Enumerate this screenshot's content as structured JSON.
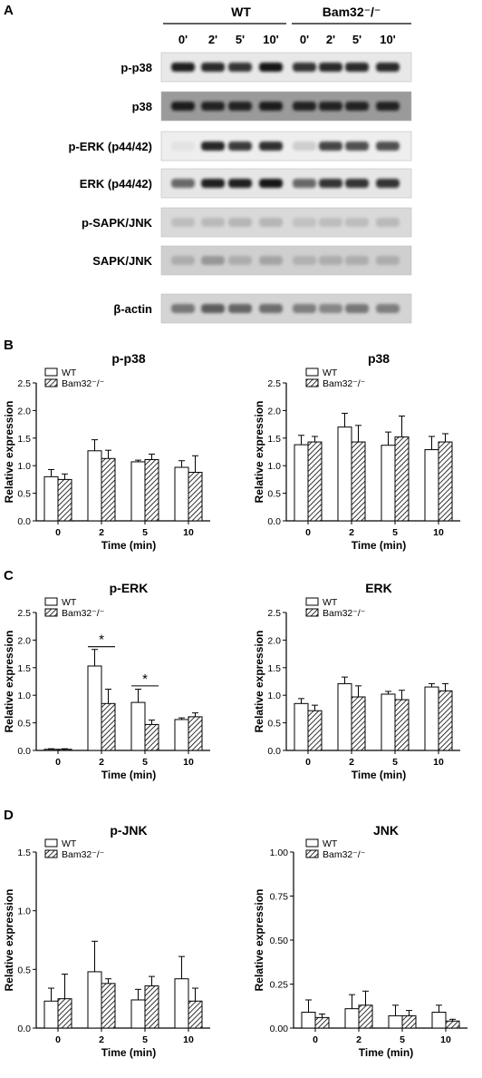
{
  "panel_letters": [
    "A",
    "B",
    "C",
    "D"
  ],
  "blot": {
    "groups": [
      "WT",
      "Bam32⁻/⁻"
    ],
    "lanes": [
      "0'",
      "2'",
      "5'",
      "10'",
      "0'",
      "2'",
      "5'",
      "10'"
    ],
    "rows": [
      {
        "label": "p-p38",
        "bg": "#e8e8e8",
        "band": "#141414"
      },
      {
        "label": "p38",
        "bg": "#9a9a9a",
        "band": "#141414"
      },
      {
        "label": "p-ERK (p44/42)",
        "bg": "#eeeeee",
        "band": "#1c1c1c"
      },
      {
        "label": "ERK (p44/42)",
        "bg": "#e6e6e6",
        "band": "#141414"
      },
      {
        "label": "p-SAPK/JNK",
        "bg": "#d9d9d9",
        "band": "#8a8a8a"
      },
      {
        "label": "SAPK/JNK",
        "bg": "#cfcfcf",
        "band": "#7a7a7a"
      },
      {
        "label": "β-actin",
        "bg": "#d4d4d4",
        "band": "#2a2a2a"
      }
    ]
  },
  "legend": {
    "wt": "WT",
    "ko": "Bam32⁻/⁻"
  },
  "chart_data": [
    {
      "type": "bar",
      "title": "p-p38",
      "xlabel": "Time (min)",
      "ylabel": "Relative expression",
      "categories": [
        "0",
        "2",
        "5",
        "10"
      ],
      "ylim": [
        0,
        2.5
      ],
      "yticks": [
        "0.0",
        "0.5",
        "1.0",
        "1.5",
        "2.0",
        "2.5"
      ],
      "series": [
        {
          "name": "WT",
          "values": [
            0.8,
            1.27,
            1.07,
            0.97
          ],
          "errors": [
            0.13,
            0.2,
            0.03,
            0.12
          ]
        },
        {
          "name": "Bam32⁻/⁻",
          "values": [
            0.75,
            1.13,
            1.11,
            0.88
          ],
          "errors": [
            0.1,
            0.15,
            0.1,
            0.3
          ]
        }
      ],
      "annotations": []
    },
    {
      "type": "bar",
      "title": "p38",
      "xlabel": "Time (min)",
      "ylabel": "Relative expression",
      "categories": [
        "0",
        "2",
        "5",
        "10"
      ],
      "ylim": [
        0,
        2.5
      ],
      "yticks": [
        "0.0",
        "0.5",
        "1.0",
        "1.5",
        "2.0",
        "2.5"
      ],
      "series": [
        {
          "name": "WT",
          "values": [
            1.38,
            1.7,
            1.37,
            1.29
          ],
          "errors": [
            0.17,
            0.25,
            0.24,
            0.24
          ]
        },
        {
          "name": "Bam32⁻/⁻",
          "values": [
            1.43,
            1.43,
            1.52,
            1.43
          ],
          "errors": [
            0.1,
            0.3,
            0.38,
            0.15
          ]
        }
      ],
      "annotations": []
    },
    {
      "type": "bar",
      "title": "p-ERK",
      "xlabel": "Time (min)",
      "ylabel": "Relative expression",
      "categories": [
        "0",
        "2",
        "5",
        "10"
      ],
      "ylim": [
        0,
        2.5
      ],
      "yticks": [
        "0.0",
        "0.5",
        "1.0",
        "1.5",
        "2.0",
        "2.5"
      ],
      "series": [
        {
          "name": "WT",
          "values": [
            0.02,
            1.53,
            0.87,
            0.56
          ],
          "errors": [
            0.01,
            0.3,
            0.24,
            0.03
          ]
        },
        {
          "name": "Bam32⁻/⁻",
          "values": [
            0.02,
            0.85,
            0.47,
            0.61
          ],
          "errors": [
            0.01,
            0.26,
            0.08,
            0.07
          ]
        }
      ],
      "annotations": [
        {
          "text": "*",
          "category": "2",
          "y": 1.88
        },
        {
          "text": "*",
          "category": "5",
          "y": 1.17
        }
      ]
    },
    {
      "type": "bar",
      "title": "ERK",
      "xlabel": "Time (min)",
      "ylabel": "Relative expression",
      "categories": [
        "0",
        "2",
        "5",
        "10"
      ],
      "ylim": [
        0,
        2.5
      ],
      "yticks": [
        "0.0",
        "0.5",
        "1.0",
        "1.5",
        "2.0",
        "2.5"
      ],
      "series": [
        {
          "name": "WT",
          "values": [
            0.85,
            1.21,
            1.02,
            1.15
          ],
          "errors": [
            0.09,
            0.12,
            0.05,
            0.06
          ]
        },
        {
          "name": "Bam32⁻/⁻",
          "values": [
            0.72,
            0.97,
            0.92,
            1.08
          ],
          "errors": [
            0.1,
            0.2,
            0.17,
            0.13
          ]
        }
      ],
      "annotations": []
    },
    {
      "type": "bar",
      "title": "p-JNK",
      "xlabel": "Time (min)",
      "ylabel": "Relative expression",
      "categories": [
        "0",
        "2",
        "5",
        "10"
      ],
      "ylim": [
        0,
        1.5
      ],
      "yticks": [
        "0.0",
        "0.5",
        "1.0",
        "1.5"
      ],
      "series": [
        {
          "name": "WT",
          "values": [
            0.23,
            0.48,
            0.24,
            0.42
          ],
          "errors": [
            0.11,
            0.26,
            0.09,
            0.19
          ]
        },
        {
          "name": "Bam32⁻/⁻",
          "values": [
            0.25,
            0.38,
            0.36,
            0.23
          ],
          "errors": [
            0.21,
            0.04,
            0.08,
            0.11
          ]
        }
      ],
      "annotations": []
    },
    {
      "type": "bar",
      "title": "JNK",
      "xlabel": "Time (min)",
      "ylabel": "Relative expression",
      "categories": [
        "0",
        "2",
        "5",
        "10"
      ],
      "ylim": [
        0,
        1.0
      ],
      "yticks": [
        "0.00",
        "0.25",
        "0.50",
        "0.75",
        "1.00"
      ],
      "series": [
        {
          "name": "WT",
          "values": [
            0.09,
            0.11,
            0.07,
            0.09
          ],
          "errors": [
            0.07,
            0.08,
            0.06,
            0.04
          ]
        },
        {
          "name": "Bam32⁻/⁻",
          "values": [
            0.06,
            0.13,
            0.07,
            0.04
          ],
          "errors": [
            0.02,
            0.08,
            0.03,
            0.01
          ]
        }
      ],
      "annotations": []
    }
  ]
}
